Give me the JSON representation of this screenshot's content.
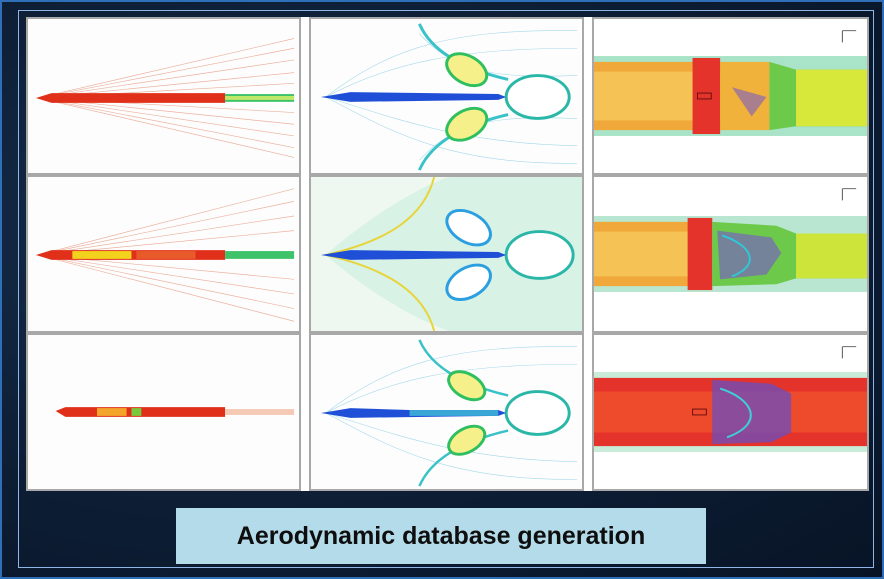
{
  "caption": "Aerodynamic database generation",
  "panels": [
    {
      "row": 1,
      "col": 1,
      "view": "full-vehicle-mach-contours"
    },
    {
      "row": 1,
      "col": 2,
      "view": "base-region-streamlines"
    },
    {
      "row": 1,
      "col": 3,
      "view": "stage-closeup-contours"
    },
    {
      "row": 2,
      "col": 1,
      "view": "full-vehicle-mach-contours"
    },
    {
      "row": 2,
      "col": 2,
      "view": "base-region-streamlines"
    },
    {
      "row": 2,
      "col": 3,
      "view": "stage-closeup-contours"
    },
    {
      "row": 3,
      "col": 1,
      "view": "full-vehicle-mach-contours"
    },
    {
      "row": 3,
      "col": 2,
      "view": "base-region-streamlines"
    },
    {
      "row": 3,
      "col": 3,
      "view": "stage-closeup-contours"
    }
  ],
  "colors": {
    "background": "#0b1a2e",
    "border": "#2f6fb8",
    "caption_box": "#b4dbe9",
    "vehicle_red": "#e0301a",
    "vehicle_blue": "#1f4fd6",
    "flow_green": "#39c24a",
    "flow_yellow": "#f2d21c"
  }
}
